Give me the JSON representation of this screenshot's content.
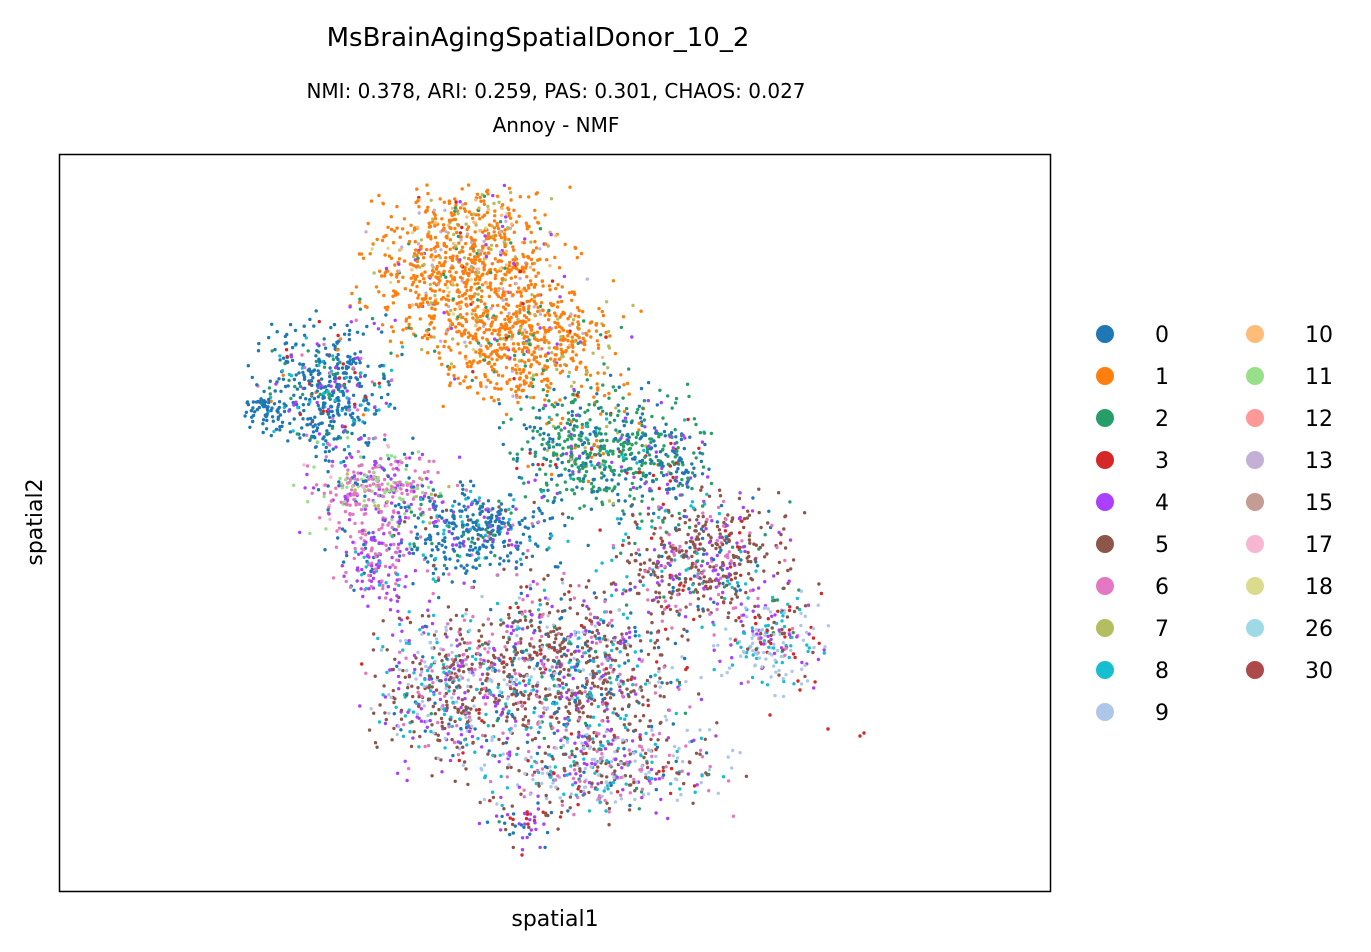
{
  "chart_data": {
    "type": "scatter",
    "title": "MsBrainAgingSpatialDonor_10_2",
    "subtitle_metrics": "NMI: 0.378,  ARI: 0.259,  PAS: 0.301,  CHAOS: 0.027",
    "subtitle_method": "Annoy - NMF",
    "xlabel": "spatial1",
    "ylabel": "spatial2",
    "xticks": [],
    "yticks": [],
    "grid": false,
    "legend_position": "right",
    "legend": [
      {
        "label": "0",
        "color": "#1f77b4"
      },
      {
        "label": "1",
        "color": "#ff7f0e"
      },
      {
        "label": "2",
        "color": "#279e68"
      },
      {
        "label": "3",
        "color": "#d62728"
      },
      {
        "label": "4",
        "color": "#aa40fc"
      },
      {
        "label": "5",
        "color": "#8c564b"
      },
      {
        "label": "6",
        "color": "#e377c2"
      },
      {
        "label": "7",
        "color": "#b5bd61"
      },
      {
        "label": "8",
        "color": "#17becf"
      },
      {
        "label": "9",
        "color": "#aec7e8"
      },
      {
        "label": "10",
        "color": "#ffbb78"
      },
      {
        "label": "11",
        "color": "#98df8a"
      },
      {
        "label": "12",
        "color": "#ff9896"
      },
      {
        "label": "13",
        "color": "#c5b0d5"
      },
      {
        "label": "15",
        "color": "#c49c94"
      },
      {
        "label": "17",
        "color": "#f7b6d2"
      },
      {
        "label": "18",
        "color": "#dbdb8d"
      },
      {
        "label": "26",
        "color": "#9edae5"
      },
      {
        "label": "30",
        "color": "#ad494a"
      }
    ]
  }
}
